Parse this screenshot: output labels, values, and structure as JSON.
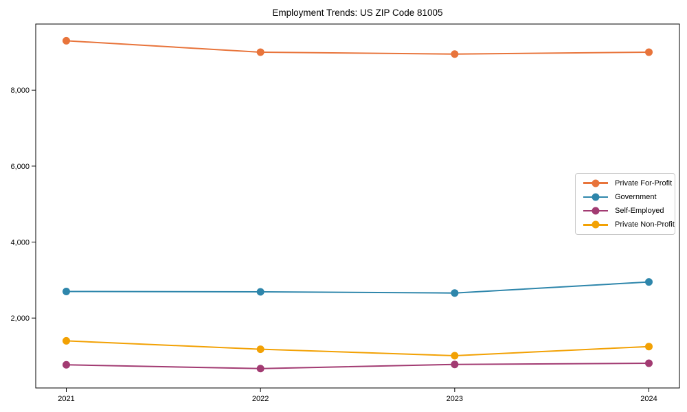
{
  "title": "Employment Trends: US ZIP Code 81005",
  "chart_data": {
    "type": "line",
    "title": "Employment Trends: US ZIP Code 81005",
    "categories": [
      "2021",
      "2022",
      "2023",
      "2024"
    ],
    "series": [
      {
        "name": "Private For-Profit",
        "color": "#E8743B",
        "values": [
          9300,
          9000,
          8950,
          9000
        ]
      },
      {
        "name": "Government",
        "color": "#2E86AB",
        "values": [
          2700,
          2690,
          2660,
          2950
        ]
      },
      {
        "name": "Self-Employed",
        "color": "#A23B72",
        "values": [
          770,
          670,
          780,
          810
        ]
      },
      {
        "name": "Private Non-Profit",
        "color": "#F2A104",
        "values": [
          1400,
          1180,
          1010,
          1250
        ]
      }
    ],
    "xlabel": "",
    "ylabel": "",
    "ylim": [
      160,
      9740
    ],
    "yticks": [
      2000,
      4000,
      6000,
      8000
    ],
    "ytick_labels": [
      "2,000",
      "4,000",
      "6,000",
      "8,000"
    ],
    "grid": false,
    "marker": "circle",
    "legend": {
      "position": "center-right",
      "entries": [
        "Private For-Profit",
        "Government",
        "Self-Employed",
        "Private Non-Profit"
      ]
    },
    "frame": true,
    "axis_color": "#000000",
    "background": "#ffffff"
  }
}
